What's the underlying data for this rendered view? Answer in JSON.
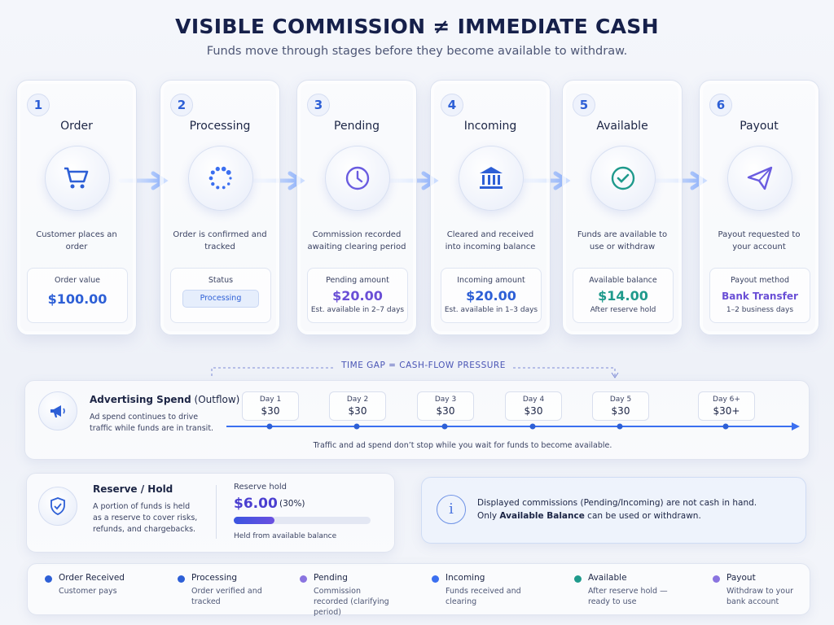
{
  "header": {
    "title": "VISIBLE COMMISSION ≠ IMMEDIATE CASH",
    "subtitle": "Funds move through stages before they become available to withdraw."
  },
  "stages": [
    {
      "number": "1",
      "title": "Order",
      "description": "Customer places an order",
      "box_label": "Order value",
      "box_value": "$100.00"
    },
    {
      "number": "2",
      "title": "Processing",
      "description": "Order is confirmed and tracked",
      "box_label": "Status",
      "box_value": "Processing"
    },
    {
      "number": "3",
      "title": "Pending",
      "description": "Commission recorded awaiting clearing period",
      "box_label": "Pending amount",
      "box_value": "$20.00",
      "box_note": "Est. available in 2–7 days"
    },
    {
      "number": "4",
      "title": "Incoming",
      "description": "Cleared and received into incoming balance",
      "box_label": "Incoming amount",
      "box_value": "$20.00",
      "box_note": "Est. available in 1–3 days"
    },
    {
      "number": "5",
      "title": "Available",
      "description": "Funds are available to use or withdraw",
      "box_label": "Available balance",
      "box_value": "$14.00",
      "box_note": "After reserve hold"
    },
    {
      "number": "6",
      "title": "Payout",
      "description": "Payout requested to your account",
      "box_label": "Payout method",
      "box_value": "Bank Transfer",
      "box_note": "1–2 business days"
    }
  ],
  "time_gap": "TIME GAP = CASH-FLOW PRESSURE",
  "advertising": {
    "title": "Advertising Spend",
    "title_suffix": "(Outflow)",
    "description": "Ad spend continues to drive traffic while funds are in transit.",
    "days": [
      {
        "label": "Day 1",
        "value": "$30"
      },
      {
        "label": "Day 2",
        "value": "$30"
      },
      {
        "label": "Day 3",
        "value": "$30"
      },
      {
        "label": "Day 4",
        "value": "$30"
      },
      {
        "label": "Day 5",
        "value": "$30"
      },
      {
        "label": "Day 6+",
        "value": "$30+"
      }
    ],
    "note": "Traffic and ad spend don’t stop while you wait for funds to become available."
  },
  "reserve": {
    "title": "Reserve / Hold",
    "description": "A portion of funds is held as a reserve to cover risks, refunds, and chargebacks.",
    "hold_label": "Reserve hold",
    "amount": "$6.00",
    "percent": "(30%)",
    "note": "Held from available balance"
  },
  "info": {
    "line1": "Displayed commissions (Pending/Incoming) are not cash in hand.",
    "line2_start": "Only ",
    "line2_bold": "Available Balance",
    "line2_end": " can be used or withdrawn."
  },
  "legend": [
    {
      "label": "Order Received",
      "description": "Customer pays"
    },
    {
      "label": "Processing",
      "description": "Order verified and tracked"
    },
    {
      "label": "Pending",
      "description": "Commission recorded (clarifying period)"
    },
    {
      "label": "Incoming",
      "description": "Funds received and clearing"
    },
    {
      "label": "Available",
      "description": "After reserve hold — ready to use"
    },
    {
      "label": "Payout",
      "description": "Withdraw to your bank account"
    }
  ]
}
